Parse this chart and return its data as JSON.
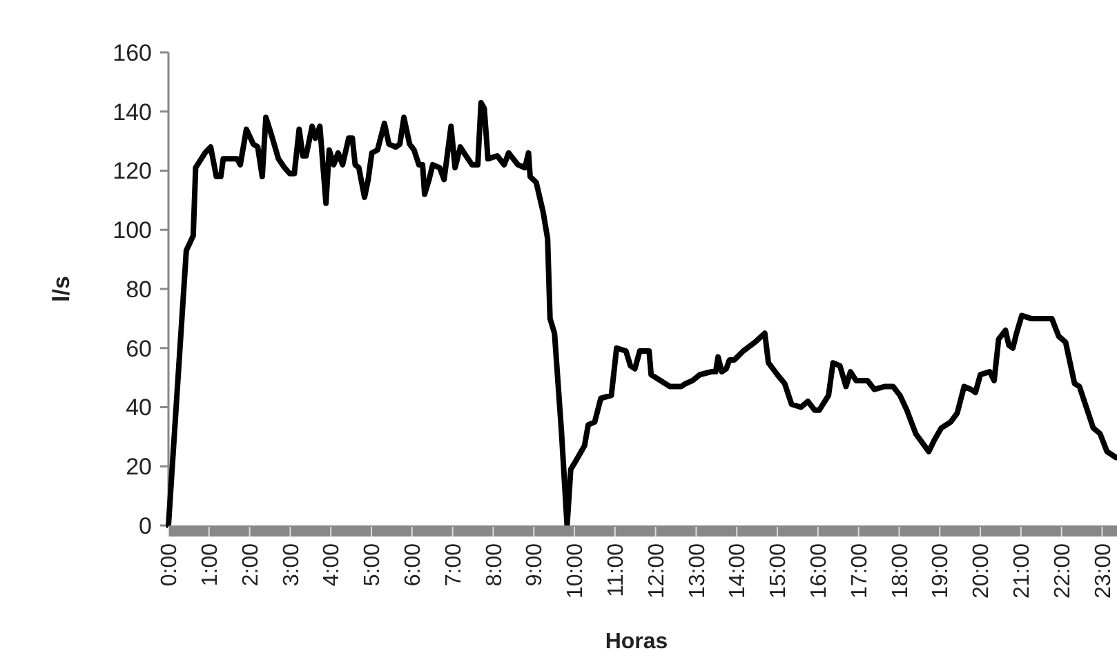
{
  "chart_data": {
    "type": "line",
    "xlabel": "Horas",
    "ylabel": "l/s",
    "xlim": [
      0,
      23.4
    ],
    "ylim": [
      0,
      160
    ],
    "yticks": [
      0,
      20,
      40,
      60,
      80,
      100,
      120,
      140,
      160
    ],
    "xticks": [
      {
        "value": 0,
        "label": "0:00"
      },
      {
        "value": 1,
        "label": "1:00"
      },
      {
        "value": 2,
        "label": "2:00"
      },
      {
        "value": 3,
        "label": "3:00"
      },
      {
        "value": 4,
        "label": "4:00"
      },
      {
        "value": 5,
        "label": "5:00"
      },
      {
        "value": 6,
        "label": "6:00"
      },
      {
        "value": 7,
        "label": "7:00"
      },
      {
        "value": 8,
        "label": "8:00"
      },
      {
        "value": 9,
        "label": "9:00"
      },
      {
        "value": 10,
        "label": "10:00"
      },
      {
        "value": 11,
        "label": "11:00"
      },
      {
        "value": 12,
        "label": "12:00"
      },
      {
        "value": 13,
        "label": "13:00"
      },
      {
        "value": 14,
        "label": "14:00"
      },
      {
        "value": 15,
        "label": "15:00"
      },
      {
        "value": 16,
        "label": "16:00"
      },
      {
        "value": 17,
        "label": "17:00"
      },
      {
        "value": 18,
        "label": "18:00"
      },
      {
        "value": 19,
        "label": "19:00"
      },
      {
        "value": 20,
        "label": "20:00"
      },
      {
        "value": 21,
        "label": "21:00"
      },
      {
        "value": 22,
        "label": "22:00"
      },
      {
        "value": 23,
        "label": "23:00"
      }
    ],
    "grid": false,
    "marker": "none",
    "line_style": "solid",
    "series": [
      {
        "color": "#000000",
        "x": [
          0,
          0.44,
          0.61,
          0.67,
          0.9,
          1.04,
          1.18,
          1.29,
          1.35,
          1.69,
          1.77,
          1.92,
          2.09,
          2.2,
          2.31,
          2.4,
          2.54,
          2.71,
          2.86,
          2.99,
          3.1,
          3.22,
          3.31,
          3.39,
          3.54,
          3.62,
          3.73,
          3.88,
          3.96,
          4.07,
          4.18,
          4.29,
          4.44,
          4.53,
          4.6,
          4.69,
          4.83,
          4.92,
          5.01,
          5.15,
          5.32,
          5.43,
          5.6,
          5.7,
          5.8,
          5.94,
          6.05,
          6.17,
          6.26,
          6.31,
          6.42,
          6.51,
          6.68,
          6.79,
          6.96,
          7.06,
          7.19,
          7.33,
          7.48,
          7.62,
          7.7,
          7.78,
          7.87,
          8.1,
          8.27,
          8.38,
          8.61,
          8.78,
          8.87,
          8.91,
          9.06,
          9.23,
          9.34,
          9.4,
          9.51,
          9.68,
          9.82,
          9.91,
          10.0,
          10.25,
          10.34,
          10.5,
          10.65,
          10.91,
          11.04,
          11.27,
          11.38,
          11.49,
          11.61,
          11.84,
          11.89,
          12.12,
          12.35,
          12.63,
          12.74,
          12.91,
          13.09,
          13.37,
          13.48,
          13.54,
          13.63,
          13.74,
          13.82,
          13.94,
          14.16,
          14.45,
          14.69,
          14.78,
          15.0,
          15.18,
          15.35,
          15.58,
          15.75,
          15.92,
          16.03,
          16.26,
          16.37,
          16.54,
          16.69,
          16.8,
          16.94,
          17.22,
          17.39,
          17.64,
          17.85,
          18.02,
          18.19,
          18.41,
          18.73,
          18.87,
          19.04,
          19.27,
          19.43,
          19.6,
          19.77,
          19.88,
          20.0,
          20.23,
          20.34,
          20.45,
          20.62,
          20.7,
          20.8,
          20.89,
          21.02,
          21.25,
          21.76,
          21.93,
          22.1,
          22.32,
          22.44,
          22.78,
          22.95,
          23.12,
          23.34
        ],
        "values": [
          0,
          93,
          98,
          121,
          126,
          128,
          118,
          118,
          124,
          124,
          122,
          134,
          129,
          128,
          118,
          138,
          132,
          124,
          121,
          119,
          119,
          134,
          125,
          125,
          135,
          131,
          135,
          109,
          127,
          122,
          126,
          122,
          131,
          131,
          122,
          121,
          111,
          117,
          126,
          127,
          136,
          129,
          128,
          129,
          138,
          129,
          127,
          122,
          122,
          112,
          117,
          122,
          121,
          117,
          135,
          121,
          128,
          125,
          122,
          122,
          143,
          141,
          124,
          125,
          122,
          126,
          122,
          121,
          126,
          118,
          116,
          106,
          97,
          70,
          65,
          32,
          0,
          19,
          21,
          27,
          34,
          35,
          43,
          44,
          60,
          59,
          54,
          53,
          59,
          59,
          51,
          49,
          47,
          47,
          48,
          49,
          51,
          52,
          52,
          57,
          52,
          53,
          56,
          56,
          59,
          62,
          65,
          55,
          51,
          48,
          41,
          40,
          42,
          39,
          39,
          44,
          55,
          54,
          47,
          52,
          49,
          49,
          46,
          47,
          47,
          44,
          39,
          31,
          25,
          29,
          33,
          35,
          38,
          47,
          46,
          45,
          51,
          52,
          49,
          63,
          66,
          61,
          60,
          65,
          71,
          70,
          70,
          64,
          62,
          48,
          47,
          33,
          31,
          25,
          23
        ]
      }
    ]
  }
}
